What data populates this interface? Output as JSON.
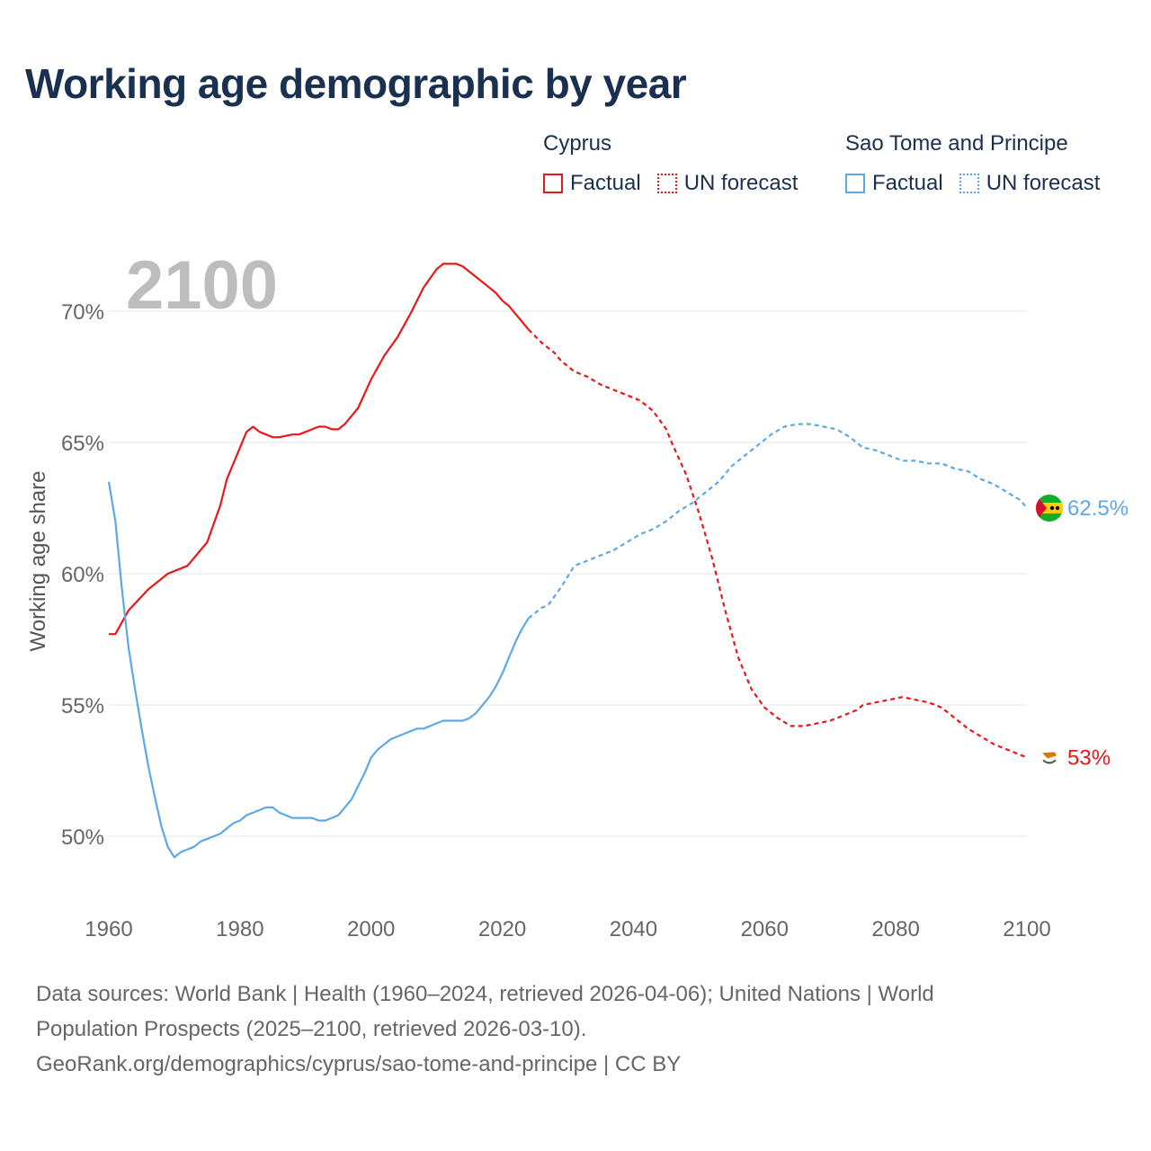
{
  "title": "Working age demographic by year",
  "legend": {
    "groups": [
      {
        "name": "Cyprus",
        "color": "#e8171a",
        "factual_label": "Factual",
        "forecast_label": "UN forecast"
      },
      {
        "name": "Sao Tome and Principe",
        "color": "#5ea8e6",
        "factual_label": "Factual",
        "forecast_label": "UN forecast"
      }
    ]
  },
  "footer": {
    "line1": "Data sources: World Bank | Health (1960–2024, retrieved 2026-04-06); United Nations | World",
    "line2": "Population Prospects (2025–2100, retrieved 2026-03-10).",
    "line3": "GeoRank.org/demographics/cyprus/sao-tome-and-principe | CC BY"
  },
  "chart_data": {
    "type": "line",
    "title": "Working age demographic by year",
    "year_watermark": "2100",
    "ylabel": "Working age share",
    "xlabel": "",
    "xlim": [
      1960,
      2100
    ],
    "ylim": [
      47,
      73
    ],
    "x_ticks": [
      "1960",
      "1980",
      "2000",
      "2020",
      "2040",
      "2060",
      "2080",
      "2100"
    ],
    "x_tick_values": [
      1960,
      1980,
      2000,
      2020,
      2040,
      2060,
      2080,
      2100
    ],
    "y_ticks": [
      "50%",
      "55%",
      "60%",
      "65%",
      "70%"
    ],
    "y_tick_values": [
      50,
      55,
      60,
      65,
      70
    ],
    "grid": true,
    "forecast_start": 2024,
    "series": [
      {
        "name": "Cyprus",
        "color": "#e8171a",
        "end_label": "53%",
        "flag": "cyprus",
        "points": [
          [
            1960,
            57.7
          ],
          [
            1961,
            57.7
          ],
          [
            1963,
            58.6
          ],
          [
            1966,
            59.4
          ],
          [
            1969,
            60.0
          ],
          [
            1972,
            60.3
          ],
          [
            1975,
            61.2
          ],
          [
            1977,
            62.6
          ],
          [
            1978,
            63.6
          ],
          [
            1980,
            64.8
          ],
          [
            1981,
            65.4
          ],
          [
            1982,
            65.6
          ],
          [
            1983,
            65.4
          ],
          [
            1985,
            65.2
          ],
          [
            1986,
            65.2
          ],
          [
            1988,
            65.3
          ],
          [
            1989,
            65.3
          ],
          [
            1991,
            65.5
          ],
          [
            1992,
            65.6
          ],
          [
            1993,
            65.6
          ],
          [
            1994,
            65.5
          ],
          [
            1995,
            65.5
          ],
          [
            1996,
            65.7
          ],
          [
            1998,
            66.3
          ],
          [
            2000,
            67.4
          ],
          [
            2002,
            68.3
          ],
          [
            2004,
            69.0
          ],
          [
            2006,
            69.9
          ],
          [
            2008,
            70.9
          ],
          [
            2010,
            71.6
          ],
          [
            2011,
            71.8
          ],
          [
            2013,
            71.8
          ],
          [
            2014,
            71.7
          ],
          [
            2016,
            71.3
          ],
          [
            2018,
            70.9
          ],
          [
            2019,
            70.7
          ],
          [
            2020,
            70.4
          ],
          [
            2021,
            70.2
          ],
          [
            2023,
            69.6
          ],
          [
            2024,
            69.3
          ],
          [
            2026,
            68.8
          ],
          [
            2028,
            68.4
          ],
          [
            2029,
            68.1
          ],
          [
            2031,
            67.7
          ],
          [
            2033,
            67.5
          ],
          [
            2035,
            67.2
          ],
          [
            2037,
            67.0
          ],
          [
            2039,
            66.8
          ],
          [
            2041,
            66.6
          ],
          [
            2043,
            66.2
          ],
          [
            2045,
            65.5
          ],
          [
            2046,
            64.9
          ],
          [
            2048,
            63.8
          ],
          [
            2050,
            62.3
          ],
          [
            2052,
            60.6
          ],
          [
            2054,
            58.6
          ],
          [
            2056,
            56.8
          ],
          [
            2058,
            55.6
          ],
          [
            2060,
            54.9
          ],
          [
            2062,
            54.5
          ],
          [
            2064,
            54.2
          ],
          [
            2066,
            54.2
          ],
          [
            2068,
            54.3
          ],
          [
            2070,
            54.4
          ],
          [
            2072,
            54.6
          ],
          [
            2074,
            54.8
          ],
          [
            2075,
            55.0
          ],
          [
            2077,
            55.1
          ],
          [
            2079,
            55.2
          ],
          [
            2081,
            55.3
          ],
          [
            2083,
            55.2
          ],
          [
            2085,
            55.1
          ],
          [
            2087,
            54.9
          ],
          [
            2089,
            54.5
          ],
          [
            2091,
            54.1
          ],
          [
            2093,
            53.8
          ],
          [
            2095,
            53.5
          ],
          [
            2097,
            53.3
          ],
          [
            2099,
            53.1
          ],
          [
            2100,
            53.0
          ]
        ]
      },
      {
        "name": "Sao Tome and Principe",
        "color": "#5ea8e6",
        "end_label": "62.5%",
        "flag": "sao-tome-and-principe",
        "points": [
          [
            1960,
            63.5
          ],
          [
            1961,
            62.0
          ],
          [
            1962,
            59.4
          ],
          [
            1963,
            57.2
          ],
          [
            1964,
            55.6
          ],
          [
            1965,
            54.1
          ],
          [
            1966,
            52.7
          ],
          [
            1967,
            51.5
          ],
          [
            1968,
            50.4
          ],
          [
            1969,
            49.6
          ],
          [
            1970,
            49.2
          ],
          [
            1971,
            49.4
          ],
          [
            1972,
            49.5
          ],
          [
            1973,
            49.6
          ],
          [
            1974,
            49.8
          ],
          [
            1976,
            50.0
          ],
          [
            1977,
            50.1
          ],
          [
            1979,
            50.5
          ],
          [
            1980,
            50.6
          ],
          [
            1981,
            50.8
          ],
          [
            1984,
            51.1
          ],
          [
            1985,
            51.1
          ],
          [
            1986,
            50.9
          ],
          [
            1988,
            50.7
          ],
          [
            1990,
            50.7
          ],
          [
            1991,
            50.7
          ],
          [
            1992,
            50.6
          ],
          [
            1993,
            50.6
          ],
          [
            1995,
            50.8
          ],
          [
            1997,
            51.4
          ],
          [
            1999,
            52.4
          ],
          [
            2000,
            53.0
          ],
          [
            2001,
            53.3
          ],
          [
            2003,
            53.7
          ],
          [
            2005,
            53.9
          ],
          [
            2007,
            54.1
          ],
          [
            2008,
            54.1
          ],
          [
            2010,
            54.3
          ],
          [
            2011,
            54.4
          ],
          [
            2013,
            54.4
          ],
          [
            2014,
            54.4
          ],
          [
            2015,
            54.5
          ],
          [
            2016,
            54.7
          ],
          [
            2018,
            55.3
          ],
          [
            2019,
            55.7
          ],
          [
            2020,
            56.2
          ],
          [
            2021,
            56.8
          ],
          [
            2022,
            57.4
          ],
          [
            2023,
            57.9
          ],
          [
            2024,
            58.3
          ],
          [
            2026,
            58.7
          ],
          [
            2027,
            58.8
          ],
          [
            2029,
            59.5
          ],
          [
            2031,
            60.3
          ],
          [
            2033,
            60.5
          ],
          [
            2035,
            60.7
          ],
          [
            2037,
            60.9
          ],
          [
            2039,
            61.2
          ],
          [
            2041,
            61.5
          ],
          [
            2043,
            61.7
          ],
          [
            2045,
            62.0
          ],
          [
            2047,
            62.4
          ],
          [
            2049,
            62.7
          ],
          [
            2051,
            63.1
          ],
          [
            2053,
            63.5
          ],
          [
            2055,
            64.1
          ],
          [
            2057,
            64.5
          ],
          [
            2059,
            64.9
          ],
          [
            2061,
            65.3
          ],
          [
            2063,
            65.6
          ],
          [
            2065,
            65.7
          ],
          [
            2067,
            65.7
          ],
          [
            2069,
            65.6
          ],
          [
            2071,
            65.5
          ],
          [
            2073,
            65.2
          ],
          [
            2075,
            64.8
          ],
          [
            2077,
            64.7
          ],
          [
            2079,
            64.5
          ],
          [
            2081,
            64.3
          ],
          [
            2083,
            64.3
          ],
          [
            2085,
            64.2
          ],
          [
            2087,
            64.2
          ],
          [
            2089,
            64.0
          ],
          [
            2091,
            63.9
          ],
          [
            2093,
            63.6
          ],
          [
            2095,
            63.4
          ],
          [
            2097,
            63.1
          ],
          [
            2099,
            62.8
          ],
          [
            2100,
            62.5
          ]
        ]
      }
    ]
  }
}
